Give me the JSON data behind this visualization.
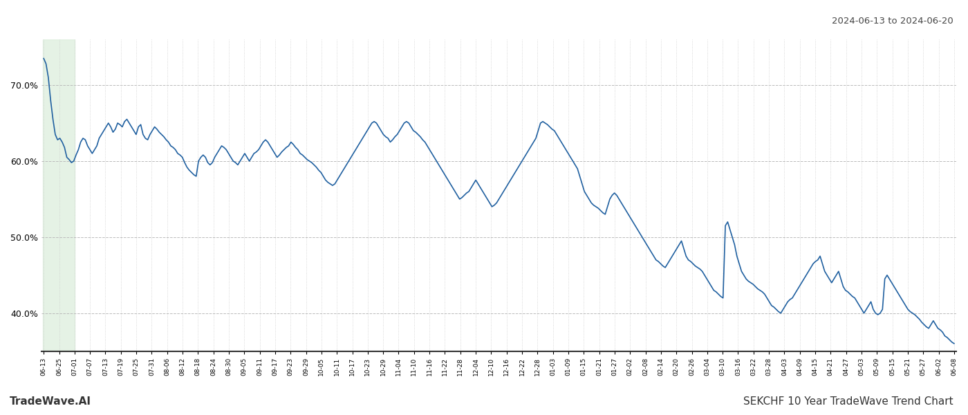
{
  "title_top_right": "2024-06-13 to 2024-06-20",
  "title_bottom_left": "TradeWave.AI",
  "title_bottom_right": "SEKCHF 10 Year TradeWave Trend Chart",
  "line_color": "#2060a0",
  "highlight_color": "#d4ead4",
  "highlight_alpha": 0.6,
  "background_color": "#ffffff",
  "grid_color_h": "#bbbbbb",
  "grid_color_v": "#cccccc",
  "ylim": [
    35.0,
    76.0
  ],
  "yticks": [
    40.0,
    50.0,
    60.0,
    70.0
  ],
  "x_labels": [
    "06-13",
    "06-25",
    "07-01",
    "07-07",
    "07-13",
    "07-19",
    "07-25",
    "07-31",
    "08-06",
    "08-12",
    "08-18",
    "08-24",
    "08-30",
    "09-05",
    "09-11",
    "09-17",
    "09-23",
    "09-29",
    "10-05",
    "10-11",
    "10-17",
    "10-23",
    "10-29",
    "11-04",
    "11-10",
    "11-16",
    "11-22",
    "11-28",
    "12-04",
    "12-10",
    "12-16",
    "12-22",
    "12-28",
    "01-03",
    "01-09",
    "01-15",
    "01-21",
    "01-27",
    "02-02",
    "02-08",
    "02-14",
    "02-20",
    "02-26",
    "03-04",
    "03-10",
    "03-16",
    "03-22",
    "03-28",
    "04-03",
    "04-09",
    "04-15",
    "04-21",
    "04-27",
    "05-03",
    "05-09",
    "05-15",
    "05-21",
    "05-27",
    "06-02",
    "06-08"
  ],
  "values": [
    73.5,
    72.8,
    71.0,
    68.0,
    65.5,
    63.5,
    62.8,
    63.0,
    62.5,
    61.8,
    60.5,
    60.2,
    59.8,
    60.0,
    60.8,
    61.5,
    62.5,
    63.0,
    62.8,
    62.0,
    61.5,
    61.0,
    61.5,
    62.0,
    63.0,
    63.5,
    64.0,
    64.5,
    65.0,
    64.5,
    63.8,
    64.2,
    65.0,
    64.8,
    64.5,
    65.2,
    65.5,
    65.0,
    64.5,
    64.0,
    63.5,
    64.5,
    64.8,
    63.5,
    63.0,
    62.8,
    63.5,
    64.0,
    64.5,
    64.2,
    63.8,
    63.5,
    63.2,
    62.8,
    62.5,
    62.0,
    61.8,
    61.5,
    61.0,
    60.8,
    60.5,
    59.8,
    59.2,
    58.8,
    58.5,
    58.2,
    58.0,
    60.0,
    60.5,
    60.8,
    60.5,
    59.8,
    59.5,
    59.8,
    60.5,
    61.0,
    61.5,
    62.0,
    61.8,
    61.5,
    61.0,
    60.5,
    60.0,
    59.8,
    59.5,
    60.0,
    60.5,
    61.0,
    60.5,
    60.0,
    60.5,
    61.0,
    61.2,
    61.5,
    62.0,
    62.5,
    62.8,
    62.5,
    62.0,
    61.5,
    61.0,
    60.5,
    60.8,
    61.2,
    61.5,
    61.8,
    62.0,
    62.5,
    62.2,
    61.8,
    61.5,
    61.0,
    60.8,
    60.5,
    60.2,
    60.0,
    59.8,
    59.5,
    59.2,
    58.8,
    58.5,
    58.0,
    57.5,
    57.2,
    57.0,
    56.8,
    57.0,
    57.5,
    58.0,
    58.5,
    59.0,
    59.5,
    60.0,
    60.5,
    61.0,
    61.5,
    62.0,
    62.5,
    63.0,
    63.5,
    64.0,
    64.5,
    65.0,
    65.2,
    65.0,
    64.5,
    64.0,
    63.5,
    63.2,
    63.0,
    62.5,
    62.8,
    63.2,
    63.5,
    64.0,
    64.5,
    65.0,
    65.2,
    65.0,
    64.5,
    64.0,
    63.8,
    63.5,
    63.2,
    62.8,
    62.5,
    62.0,
    61.5,
    61.0,
    60.5,
    60.0,
    59.5,
    59.0,
    58.5,
    58.0,
    57.5,
    57.0,
    56.5,
    56.0,
    55.5,
    55.0,
    55.2,
    55.5,
    55.8,
    56.0,
    56.5,
    57.0,
    57.5,
    57.0,
    56.5,
    56.0,
    55.5,
    55.0,
    54.5,
    54.0,
    54.2,
    54.5,
    55.0,
    55.5,
    56.0,
    56.5,
    57.0,
    57.5,
    58.0,
    58.5,
    59.0,
    59.5,
    60.0,
    60.5,
    61.0,
    61.5,
    62.0,
    62.5,
    63.0,
    64.0,
    65.0,
    65.2,
    65.0,
    64.8,
    64.5,
    64.2,
    64.0,
    63.5,
    63.0,
    62.5,
    62.0,
    61.5,
    61.0,
    60.5,
    60.0,
    59.5,
    59.0,
    58.0,
    57.0,
    56.0,
    55.5,
    55.0,
    54.5,
    54.2,
    54.0,
    53.8,
    53.5,
    53.2,
    53.0,
    54.0,
    55.0,
    55.5,
    55.8,
    55.5,
    55.0,
    54.5,
    54.0,
    53.5,
    53.0,
    52.5,
    52.0,
    51.5,
    51.0,
    50.5,
    50.0,
    49.5,
    49.0,
    48.5,
    48.0,
    47.5,
    47.0,
    46.8,
    46.5,
    46.2,
    46.0,
    46.5,
    47.0,
    47.5,
    48.0,
    48.5,
    49.0,
    49.5,
    48.5,
    47.5,
    47.0,
    46.8,
    46.5,
    46.2,
    46.0,
    45.8,
    45.5,
    45.0,
    44.5,
    44.0,
    43.5,
    43.0,
    42.8,
    42.5,
    42.2,
    42.0,
    51.5,
    52.0,
    51.0,
    50.0,
    49.0,
    47.5,
    46.5,
    45.5,
    45.0,
    44.5,
    44.2,
    44.0,
    43.8,
    43.5,
    43.2,
    43.0,
    42.8,
    42.5,
    42.0,
    41.5,
    41.0,
    40.8,
    40.5,
    40.2,
    40.0,
    40.5,
    41.0,
    41.5,
    41.8,
    42.0,
    42.5,
    43.0,
    43.5,
    44.0,
    44.5,
    45.0,
    45.5,
    46.0,
    46.5,
    46.8,
    47.0,
    47.5,
    46.5,
    45.5,
    45.0,
    44.5,
    44.0,
    44.5,
    45.0,
    45.5,
    44.5,
    43.5,
    43.0,
    42.8,
    42.5,
    42.2,
    42.0,
    41.5,
    41.0,
    40.5,
    40.0,
    40.5,
    41.0,
    41.5,
    40.5,
    40.0,
    39.8,
    40.0,
    40.5,
    44.5,
    45.0,
    44.5,
    44.0,
    43.5,
    43.0,
    42.5,
    42.0,
    41.5,
    41.0,
    40.5,
    40.2,
    40.0,
    39.8,
    39.5,
    39.2,
    38.8,
    38.5,
    38.2,
    38.0,
    38.5,
    39.0,
    38.5,
    38.0,
    37.8,
    37.5,
    37.0,
    36.8,
    36.5,
    36.2,
    36.0
  ]
}
